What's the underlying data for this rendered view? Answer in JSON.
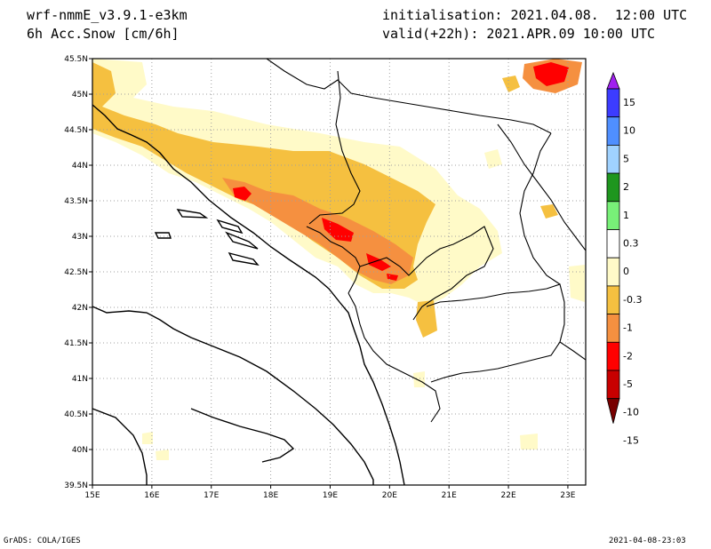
{
  "header": {
    "model": "wrf-nmmE_v3.9.1-e3km",
    "variable": "6h Acc.Snow [cm/6h]",
    "init": "initialisation: 2021.04.08.  12:00 UTC",
    "valid": "valid(+22h): 2021.APR.09 10:00 UTC"
  },
  "footer": {
    "credit": "GrADS: COLA/IGES",
    "timestamp": "2021-04-08-23:03"
  },
  "axes": {
    "lon_ticks": [
      "15E",
      "16E",
      "17E",
      "18E",
      "19E",
      "20E",
      "21E",
      "22E",
      "23E"
    ],
    "lat_ticks": [
      "45.5N",
      "45N",
      "44.5N",
      "44N",
      "43.5N",
      "43N",
      "42.5N",
      "42N",
      "41.5N",
      "41N",
      "40.5N",
      "40N",
      "39.5N"
    ],
    "lon_range": [
      15,
      23.3
    ],
    "lat_range": [
      39.5,
      45.5
    ]
  },
  "colorbar": {
    "labels": [
      "15",
      "10",
      "5",
      "2",
      "1",
      "0.3",
      "0",
      "-0.3",
      "-1",
      "-2",
      "-5",
      "-10",
      "-15"
    ],
    "colors": [
      "#a020f0",
      "#3c3cff",
      "#4f8fff",
      "#a0d2ff",
      "#1e961e",
      "#78f078",
      "#ffffff",
      "#fffac8",
      "#f5c040",
      "#f59040",
      "#ff0000",
      "#c80000",
      "#780000"
    ]
  },
  "fill_colors": {
    "light": "#fffac8",
    "yellow": "#f5c040",
    "orange": "#f59040",
    "red": "#ff0000"
  }
}
